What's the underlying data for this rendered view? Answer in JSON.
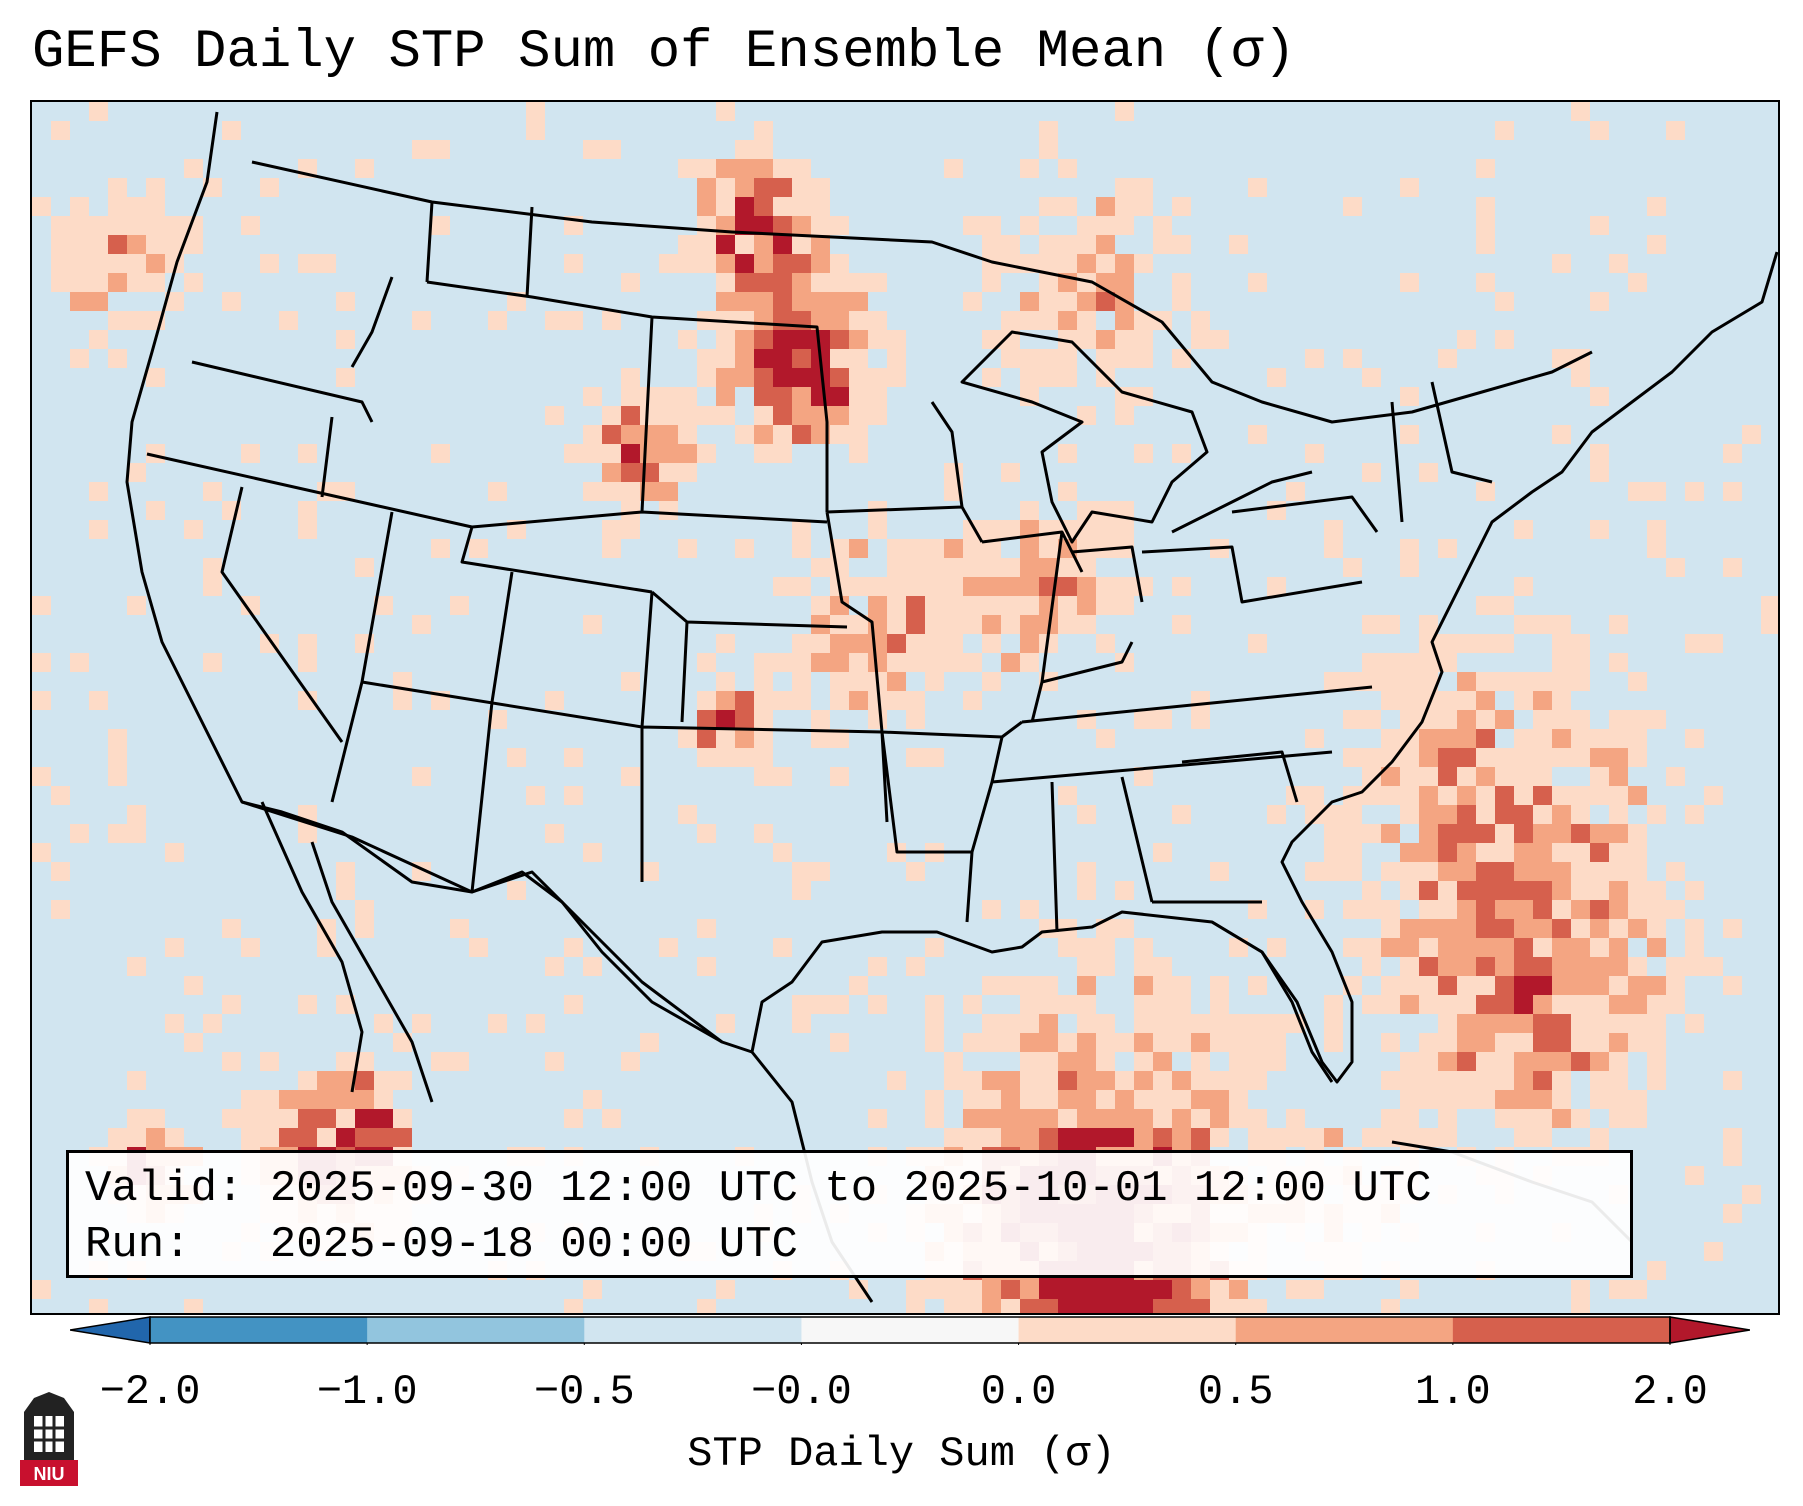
{
  "title": "GEFS Daily STP Sum of Ensemble Mean (σ)",
  "info": {
    "valid_line": "Valid: 2025-09-30 12:00 UTC to 2025-10-01 12:00 UTC",
    "run_line": "Run:   2025-09-18 00:00 UTC"
  },
  "colorbar": {
    "label": "STP Daily Sum (σ)",
    "ticks": [
      "−2.0",
      "−1.0",
      "−0.5",
      "−0.0",
      "0.0",
      "0.5",
      "1.0",
      "2.0"
    ],
    "colors": [
      "#2166ac",
      "#4393c3",
      "#92c5de",
      "#d1e5f0",
      "#f7f7f7",
      "#fddbc7",
      "#f4a582",
      "#d6604d",
      "#b2182b"
    ],
    "extend": "both"
  },
  "map": {
    "background_color": "#d1e5f0",
    "boundary_color": "#000000",
    "region": "Contiguous United States, northern Mexico, Gulf of Mexico",
    "notable_maxima": [
      "North Dakota / South Dakota",
      "eastern Montana",
      "southeastern Colorado",
      "Baja California",
      "southern Gulf of Mexico"
    ]
  },
  "logo": {
    "text": "NIU",
    "icon": "niu-tower-logo-icon"
  }
}
